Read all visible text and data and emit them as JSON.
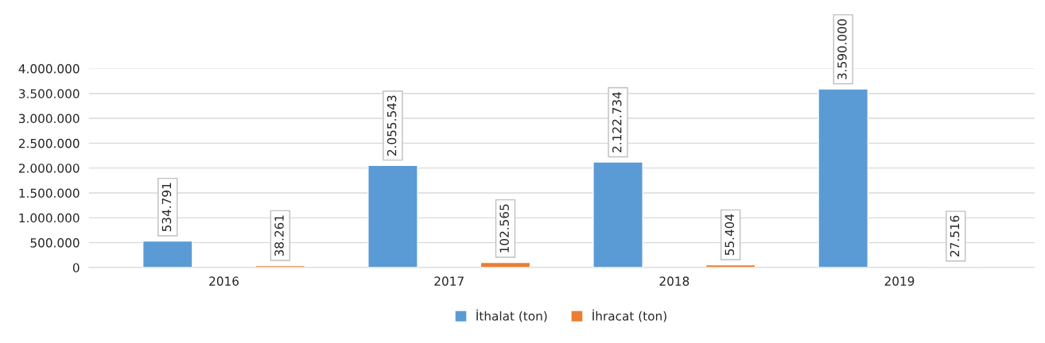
{
  "chart_data": {
    "type": "bar",
    "categories": [
      "2016",
      "2017",
      "2018",
      "2019"
    ],
    "series": [
      {
        "name": "İthalat (ton)",
        "color": "#5b9bd5",
        "values": [
          534791,
          2055543,
          2122734,
          3590000
        ],
        "value_labels": [
          "534.791",
          "2.055.543",
          "2.122.734",
          "3.590.000"
        ]
      },
      {
        "name": "İhracat (ton)",
        "color": "#ed7d31",
        "values": [
          38261,
          102565,
          55404,
          27516
        ],
        "value_labels": [
          "38.261",
          "102.565",
          "55.404",
          "27.516"
        ]
      }
    ],
    "ylim": [
      0,
      4000000
    ],
    "yticks": [
      {
        "value": 0,
        "label": "0"
      },
      {
        "value": 500000,
        "label": "500.000"
      },
      {
        "value": 1000000,
        "label": "1.000.000"
      },
      {
        "value": 1500000,
        "label": "1.500.000"
      },
      {
        "value": 2000000,
        "label": "2.000.000"
      },
      {
        "value": 2500000,
        "label": "2.500.000"
      },
      {
        "value": 3000000,
        "label": "3.000.000"
      },
      {
        "value": 3500000,
        "label": "3.500.000"
      },
      {
        "value": 4000000,
        "label": "4.000.000"
      }
    ],
    "grid": "y",
    "legend": "bottom"
  }
}
